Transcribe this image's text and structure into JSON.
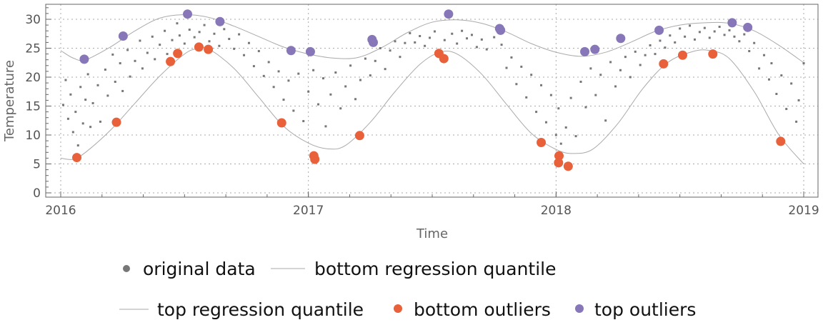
{
  "chart_data": {
    "type": "scatter",
    "title": "",
    "xlabel": "Time",
    "ylabel": "Temperature",
    "xlim": [
      2015.94,
      2019.06
    ],
    "ylim": [
      -0.7,
      32.6
    ],
    "grid": true,
    "x_ticks": [
      2016,
      2017,
      2018,
      2019
    ],
    "x_tick_labels": [
      "2016",
      "2017",
      "2018",
      "2019"
    ],
    "y_ticks": [
      0,
      5,
      10,
      15,
      20,
      25,
      30
    ],
    "y_tick_labels": [
      "0",
      "5",
      "10",
      "15",
      "20",
      "25",
      "30"
    ],
    "legend_position": "bottom",
    "colors": {
      "original": "#777777",
      "curve": "#aaaaaa",
      "bottom_outliers": "#E8613A",
      "top_outliers": "#8877B8"
    },
    "series": [
      {
        "name": "original data",
        "kind": "points",
        "points": [
          [
            2016.01,
            15.2
          ],
          [
            2016.02,
            19.5
          ],
          [
            2016.03,
            12.8
          ],
          [
            2016.04,
            17.0
          ],
          [
            2016.05,
            10.5
          ],
          [
            2016.06,
            14.0
          ],
          [
            2016.07,
            8.2
          ],
          [
            2016.08,
            18.3
          ],
          [
            2016.09,
            12.0
          ],
          [
            2016.1,
            16.1
          ],
          [
            2016.11,
            20.5
          ],
          [
            2016.12,
            11.4
          ],
          [
            2016.13,
            15.5
          ],
          [
            2016.15,
            18.6
          ],
          [
            2016.16,
            12.3
          ],
          [
            2016.18,
            21.3
          ],
          [
            2016.19,
            16.8
          ],
          [
            2016.21,
            23.9
          ],
          [
            2016.22,
            19.2
          ],
          [
            2016.24,
            22.4
          ],
          [
            2016.25,
            17.6
          ],
          [
            2016.27,
            24.7
          ],
          [
            2016.28,
            20.1
          ],
          [
            2016.3,
            22.8
          ],
          [
            2016.32,
            26.3
          ],
          [
            2016.33,
            21.5
          ],
          [
            2016.35,
            24.2
          ],
          [
            2016.37,
            27.0
          ],
          [
            2016.38,
            23.1
          ],
          [
            2016.4,
            25.6
          ],
          [
            2016.42,
            28.0
          ],
          [
            2016.43,
            24.0
          ],
          [
            2016.45,
            26.4
          ],
          [
            2016.47,
            29.3
          ],
          [
            2016.48,
            27.2
          ],
          [
            2016.5,
            25.8
          ],
          [
            2016.52,
            28.2
          ],
          [
            2016.54,
            26.9
          ],
          [
            2016.56,
            27.8
          ],
          [
            2016.58,
            29.0
          ],
          [
            2016.6,
            26.2
          ],
          [
            2016.62,
            27.5
          ],
          [
            2016.64,
            25.4
          ],
          [
            2016.66,
            28.3
          ],
          [
            2016.68,
            26.6
          ],
          [
            2016.7,
            24.9
          ],
          [
            2016.72,
            27.4
          ],
          [
            2016.74,
            23.8
          ],
          [
            2016.76,
            25.9
          ],
          [
            2016.78,
            21.9
          ],
          [
            2016.8,
            24.5
          ],
          [
            2016.82,
            20.2
          ],
          [
            2016.84,
            22.6
          ],
          [
            2016.86,
            18.3
          ],
          [
            2016.88,
            21.0
          ],
          [
            2016.9,
            16.1
          ],
          [
            2016.92,
            19.4
          ],
          [
            2016.94,
            14.2
          ],
          [
            2016.96,
            20.6
          ],
          [
            2016.98,
            12.4
          ],
          [
            2017.0,
            17.5
          ],
          [
            2017.02,
            21.2
          ],
          [
            2017.04,
            15.3
          ],
          [
            2017.06,
            19.8
          ],
          [
            2017.07,
            11.5
          ],
          [
            2017.09,
            17.0
          ],
          [
            2017.11,
            20.8
          ],
          [
            2017.13,
            14.6
          ],
          [
            2017.15,
            18.4
          ],
          [
            2017.17,
            22.0
          ],
          [
            2017.19,
            16.2
          ],
          [
            2017.21,
            19.5
          ],
          [
            2017.23,
            23.2
          ],
          [
            2017.25,
            20.3
          ],
          [
            2017.27,
            22.8
          ],
          [
            2017.29,
            25.0
          ],
          [
            2017.31,
            21.4
          ],
          [
            2017.33,
            24.6
          ],
          [
            2017.35,
            26.2
          ],
          [
            2017.37,
            23.5
          ],
          [
            2017.39,
            25.9
          ],
          [
            2017.41,
            27.6
          ],
          [
            2017.43,
            26.0
          ],
          [
            2017.45,
            27.1
          ],
          [
            2017.47,
            25.4
          ],
          [
            2017.49,
            26.8
          ],
          [
            2017.51,
            27.9
          ],
          [
            2017.55,
            26.4
          ],
          [
            2017.58,
            27.5
          ],
          [
            2017.6,
            25.8
          ],
          [
            2017.62,
            28.0
          ],
          [
            2017.64,
            26.7
          ],
          [
            2017.66,
            27.3
          ],
          [
            2017.68,
            25.2
          ],
          [
            2017.7,
            26.5
          ],
          [
            2017.72,
            24.8
          ],
          [
            2017.75,
            26.9
          ],
          [
            2017.78,
            25.6
          ],
          [
            2017.8,
            21.6
          ],
          [
            2017.82,
            23.4
          ],
          [
            2017.84,
            18.8
          ],
          [
            2017.86,
            21.8
          ],
          [
            2017.88,
            16.5
          ],
          [
            2017.9,
            20.4
          ],
          [
            2017.92,
            14.0
          ],
          [
            2017.94,
            18.6
          ],
          [
            2017.96,
            12.2
          ],
          [
            2017.98,
            16.9
          ],
          [
            2018.0,
            10.0
          ],
          [
            2018.01,
            14.6
          ],
          [
            2018.02,
            8.5
          ],
          [
            2018.04,
            11.3
          ],
          [
            2018.06,
            16.4
          ],
          [
            2018.08,
            9.8
          ],
          [
            2018.1,
            19.2
          ],
          [
            2018.12,
            14.8
          ],
          [
            2018.14,
            21.5
          ],
          [
            2018.16,
            16.9
          ],
          [
            2018.18,
            20.4
          ],
          [
            2018.2,
            12.5
          ],
          [
            2018.22,
            22.6
          ],
          [
            2018.24,
            18.4
          ],
          [
            2018.26,
            21.2
          ],
          [
            2018.28,
            23.5
          ],
          [
            2018.3,
            20.0
          ],
          [
            2018.32,
            24.4
          ],
          [
            2018.34,
            22.1
          ],
          [
            2018.36,
            23.8
          ],
          [
            2018.38,
            25.5
          ],
          [
            2018.4,
            24.0
          ],
          [
            2018.42,
            26.3
          ],
          [
            2018.44,
            25.1
          ],
          [
            2018.46,
            27.2
          ],
          [
            2018.48,
            26.0
          ],
          [
            2018.5,
            28.4
          ],
          [
            2018.52,
            27.0
          ],
          [
            2018.54,
            28.9
          ],
          [
            2018.56,
            26.5
          ],
          [
            2018.58,
            27.8
          ],
          [
            2018.6,
            28.5
          ],
          [
            2018.62,
            26.8
          ],
          [
            2018.64,
            27.9
          ],
          [
            2018.66,
            28.7
          ],
          [
            2018.68,
            27.3
          ],
          [
            2018.7,
            28.1
          ],
          [
            2018.72,
            27.0
          ],
          [
            2018.74,
            26.2
          ],
          [
            2018.76,
            27.4
          ],
          [
            2018.78,
            24.5
          ],
          [
            2018.8,
            25.9
          ],
          [
            2018.82,
            21.5
          ],
          [
            2018.84,
            23.8
          ],
          [
            2018.86,
            19.6
          ],
          [
            2018.87,
            22.4
          ],
          [
            2018.89,
            17.1
          ],
          [
            2018.91,
            20.3
          ],
          [
            2018.93,
            14.5
          ],
          [
            2018.95,
            18.9
          ],
          [
            2018.97,
            12.3
          ],
          [
            2018.98,
            16.0
          ],
          [
            2019.0,
            22.4
          ]
        ]
      },
      {
        "name": "bottom regression quantile",
        "kind": "curve",
        "points": [
          [
            2016.0,
            6.0
          ],
          [
            2016.05,
            5.8
          ],
          [
            2016.1,
            7.0
          ],
          [
            2016.2,
            10.8
          ],
          [
            2016.3,
            15.5
          ],
          [
            2016.4,
            20.2
          ],
          [
            2016.5,
            24.0
          ],
          [
            2016.55,
            24.9
          ],
          [
            2016.6,
            24.8
          ],
          [
            2016.7,
            21.5
          ],
          [
            2016.8,
            16.5
          ],
          [
            2016.9,
            11.5
          ],
          [
            2017.0,
            8.6
          ],
          [
            2017.08,
            7.6
          ],
          [
            2017.15,
            8.2
          ],
          [
            2017.25,
            12.2
          ],
          [
            2017.35,
            17.5
          ],
          [
            2017.45,
            22.2
          ],
          [
            2017.53,
            24.3
          ],
          [
            2017.6,
            24.0
          ],
          [
            2017.7,
            20.5
          ],
          [
            2017.8,
            15.3
          ],
          [
            2017.9,
            10.3
          ],
          [
            2018.0,
            7.5
          ],
          [
            2018.07,
            6.8
          ],
          [
            2018.15,
            7.6
          ],
          [
            2018.25,
            12.0
          ],
          [
            2018.35,
            18.0
          ],
          [
            2018.45,
            22.5
          ],
          [
            2018.55,
            24.4
          ],
          [
            2018.62,
            24.6
          ],
          [
            2018.7,
            23.2
          ],
          [
            2018.8,
            17.5
          ],
          [
            2018.9,
            10.0
          ],
          [
            2019.0,
            5.0
          ]
        ]
      },
      {
        "name": "top regression quantile",
        "kind": "curve",
        "points": [
          [
            2016.0,
            24.6
          ],
          [
            2016.05,
            23.3
          ],
          [
            2016.1,
            23.0
          ],
          [
            2016.2,
            25.2
          ],
          [
            2016.3,
            28.0
          ],
          [
            2016.4,
            30.2
          ],
          [
            2016.5,
            30.8
          ],
          [
            2016.6,
            30.3
          ],
          [
            2016.7,
            28.8
          ],
          [
            2016.8,
            27.0
          ],
          [
            2016.9,
            25.2
          ],
          [
            2017.0,
            24.0
          ],
          [
            2017.1,
            23.3
          ],
          [
            2017.2,
            23.4
          ],
          [
            2017.3,
            25.2
          ],
          [
            2017.4,
            27.7
          ],
          [
            2017.5,
            29.5
          ],
          [
            2017.6,
            29.9
          ],
          [
            2017.7,
            29.3
          ],
          [
            2017.8,
            27.8
          ],
          [
            2017.9,
            25.8
          ],
          [
            2018.0,
            24.3
          ],
          [
            2018.1,
            23.6
          ],
          [
            2018.2,
            24.3
          ],
          [
            2018.3,
            26.0
          ],
          [
            2018.4,
            27.9
          ],
          [
            2018.5,
            29.0
          ],
          [
            2018.6,
            29.4
          ],
          [
            2018.7,
            29.3
          ],
          [
            2018.8,
            28.0
          ],
          [
            2018.9,
            25.5
          ],
          [
            2019.0,
            22.5
          ]
        ]
      },
      {
        "name": "bottom outliers",
        "kind": "outliers",
        "points": [
          [
            2016.065,
            6.1
          ],
          [
            2016.225,
            12.2
          ],
          [
            2016.443,
            22.7
          ],
          [
            2016.472,
            24.1
          ],
          [
            2016.558,
            25.2
          ],
          [
            2016.596,
            24.8
          ],
          [
            2016.892,
            12.1
          ],
          [
            2017.022,
            6.4
          ],
          [
            2017.026,
            5.8
          ],
          [
            2017.207,
            9.9
          ],
          [
            2017.527,
            24.1
          ],
          [
            2017.547,
            23.2
          ],
          [
            2017.94,
            8.7
          ],
          [
            2018.012,
            6.4
          ],
          [
            2018.01,
            5.2
          ],
          [
            2018.049,
            4.6
          ],
          [
            2018.434,
            22.3
          ],
          [
            2018.511,
            23.8
          ],
          [
            2018.633,
            24.0
          ],
          [
            2018.907,
            8.9
          ]
        ]
      },
      {
        "name": "top outliers",
        "kind": "outliers",
        "points": [
          [
            2016.095,
            23.1
          ],
          [
            2016.252,
            27.1
          ],
          [
            2016.512,
            30.9
          ],
          [
            2016.643,
            29.6
          ],
          [
            2016.93,
            24.6
          ],
          [
            2017.008,
            24.4
          ],
          [
            2017.257,
            26.5
          ],
          [
            2017.262,
            26.0
          ],
          [
            2017.566,
            30.9
          ],
          [
            2017.772,
            28.4
          ],
          [
            2017.776,
            28.1
          ],
          [
            2018.116,
            24.4
          ],
          [
            2018.157,
            24.8
          ],
          [
            2018.261,
            26.7
          ],
          [
            2018.416,
            28.1
          ],
          [
            2018.711,
            29.4
          ],
          [
            2018.774,
            28.6
          ]
        ]
      }
    ]
  }
}
